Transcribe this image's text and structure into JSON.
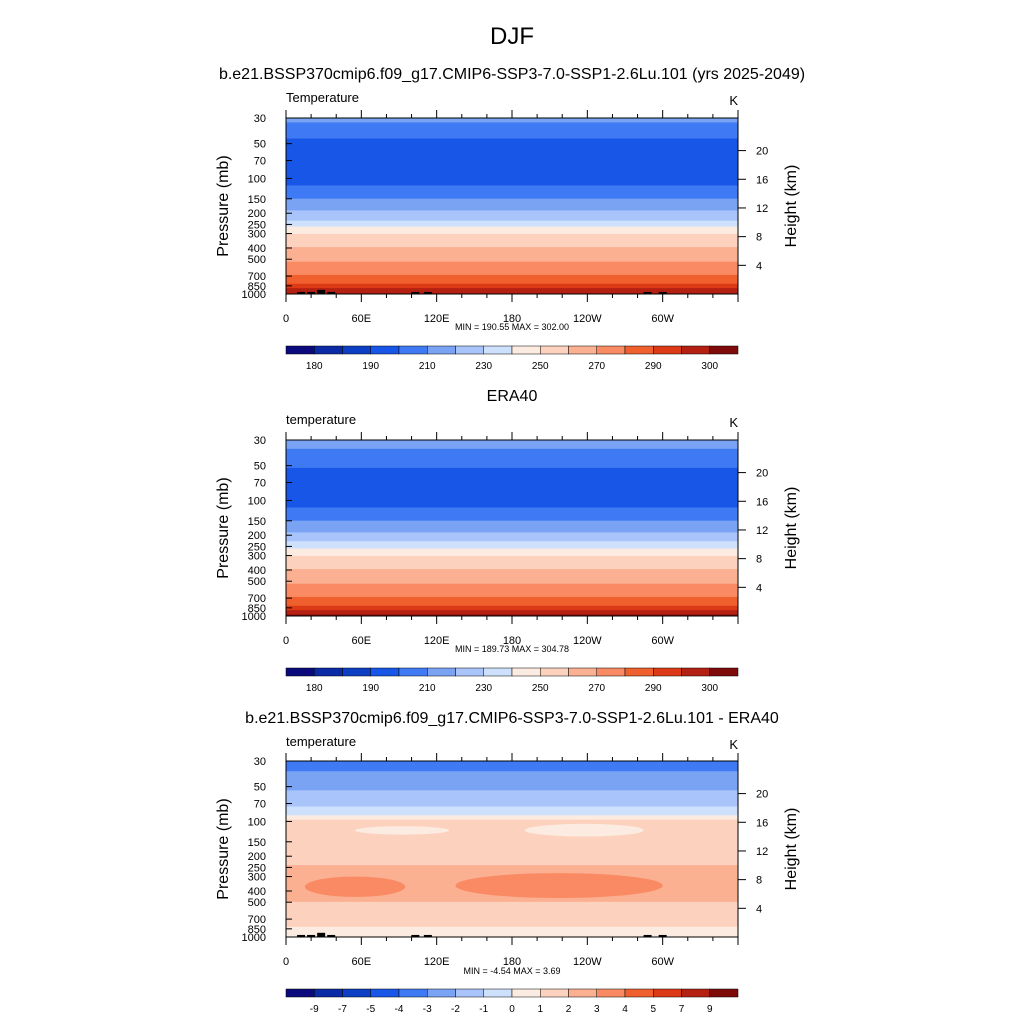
{
  "figure": {
    "title": "DJF",
    "subtitle": "b.e21.BSSP370cmip6.f09_g17.CMIP6-SSP3-7.0-SSP1-2.6Lu.101 (yrs 2025-2049)"
  },
  "colors": {
    "absolute_palette": [
      "#0a0a7c",
      "#0b2aa6",
      "#0c3fc4",
      "#1856e8",
      "#3f7af4",
      "#7aa3f4",
      "#a9c4fa",
      "#cde0fc",
      "#fcebe0",
      "#fcd2bf",
      "#fbb092",
      "#f98a63",
      "#f0602f",
      "#dc3a16",
      "#b42112",
      "#7e0a0a"
    ],
    "diff_palette": [
      "#0a0a7c",
      "#0b2aa6",
      "#0c3fc4",
      "#1856e8",
      "#3f7af4",
      "#7aa3f4",
      "#a9c4fa",
      "#cde0fc",
      "#fcebe0",
      "#fcd2bf",
      "#fbb092",
      "#f98a63",
      "#f0602f",
      "#dc3a16",
      "#b42112",
      "#7e0a0a"
    ],
    "terrain": "#000000"
  },
  "chart_data": [
    {
      "type": "heatmap",
      "id": "p1",
      "title": "",
      "left_label": "Temperature",
      "units": "K",
      "ylabel": "Pressure (mb)",
      "ylabel_right": "Height (km)",
      "x_tick_labels": [
        "0",
        "60E",
        "120E",
        "180",
        "120W",
        "60W"
      ],
      "y_tick_labels": [
        "30",
        "50",
        "70",
        "100",
        "150",
        "200",
        "250",
        "300",
        "400",
        "500",
        "700",
        "850",
        "1000"
      ],
      "y_tick_values": [
        30,
        50,
        70,
        100,
        150,
        200,
        250,
        300,
        400,
        500,
        700,
        850,
        1000
      ],
      "height_tick_labels": [
        "4",
        "8",
        "12",
        "16",
        "20"
      ],
      "height_tick_values": [
        4,
        8,
        12,
        16,
        20
      ],
      "ylim": [
        30,
        1000
      ],
      "xlim": [
        0,
        360
      ],
      "stats": "MIN = 190.55  MAX = 302.00",
      "colorbar_labels": [
        "180",
        "190",
        "210",
        "230",
        "250",
        "270",
        "290",
        "300"
      ],
      "profile": [
        {
          "p": 30,
          "value": 212
        },
        {
          "p": 35,
          "value": 208
        },
        {
          "p": 50,
          "value": 197
        },
        {
          "p": 100,
          "value": 196
        },
        {
          "p": 130,
          "value": 203
        },
        {
          "p": 160,
          "value": 213
        },
        {
          "p": 200,
          "value": 222
        },
        {
          "p": 240,
          "value": 232
        },
        {
          "p": 270,
          "value": 243
        },
        {
          "p": 310,
          "value": 252
        },
        {
          "p": 360,
          "value": 257
        },
        {
          "p": 420,
          "value": 263
        },
        {
          "p": 500,
          "value": 268
        },
        {
          "p": 620,
          "value": 276
        },
        {
          "p": 720,
          "value": 283
        },
        {
          "p": 820,
          "value": 290
        },
        {
          "p": 900,
          "value": 295
        },
        {
          "p": 1000,
          "value": 300
        }
      ],
      "terrain": [
        {
          "lon": 12,
          "top_p": 960
        },
        {
          "lon": 20,
          "top_p": 960
        },
        {
          "lon": 28,
          "top_p": 920
        },
        {
          "lon": 36,
          "top_p": 960
        },
        {
          "lon": 103,
          "top_p": 960
        },
        {
          "lon": 113,
          "top_p": 960
        },
        {
          "lon": 288,
          "top_p": 960
        },
        {
          "lon": 300,
          "top_p": 960
        }
      ]
    },
    {
      "type": "heatmap",
      "id": "p2",
      "title": "ERA40",
      "left_label": "temperature",
      "units": "K",
      "ylabel": "Pressure (mb)",
      "ylabel_right": "Height (km)",
      "x_tick_labels": [
        "0",
        "60E",
        "120E",
        "180",
        "120W",
        "60W"
      ],
      "y_tick_labels": [
        "30",
        "50",
        "70",
        "100",
        "150",
        "200",
        "250",
        "300",
        "400",
        "500",
        "700",
        "850",
        "1000"
      ],
      "y_tick_values": [
        30,
        50,
        70,
        100,
        150,
        200,
        250,
        300,
        400,
        500,
        700,
        850,
        1000
      ],
      "height_tick_labels": [
        "4",
        "8",
        "12",
        "16",
        "20"
      ],
      "height_tick_values": [
        4,
        8,
        12,
        16,
        20
      ],
      "ylim": [
        30,
        1000
      ],
      "xlim": [
        0,
        360
      ],
      "stats": "MIN = 189.73  MAX = 304.78",
      "colorbar_labels": [
        "180",
        "190",
        "210",
        "230",
        "250",
        "270",
        "290",
        "300"
      ],
      "profile": [
        {
          "p": 30,
          "value": 213
        },
        {
          "p": 40,
          "value": 208
        },
        {
          "p": 55,
          "value": 198
        },
        {
          "p": 100,
          "value": 196
        },
        {
          "p": 130,
          "value": 204
        },
        {
          "p": 160,
          "value": 213
        },
        {
          "p": 200,
          "value": 222
        },
        {
          "p": 240,
          "value": 233
        },
        {
          "p": 270,
          "value": 243
        },
        {
          "p": 310,
          "value": 252
        },
        {
          "p": 360,
          "value": 257
        },
        {
          "p": 420,
          "value": 263
        },
        {
          "p": 500,
          "value": 268
        },
        {
          "p": 620,
          "value": 276
        },
        {
          "p": 720,
          "value": 283
        },
        {
          "p": 820,
          "value": 290
        },
        {
          "p": 900,
          "value": 295
        },
        {
          "p": 1000,
          "value": 301
        }
      ],
      "terrain": []
    },
    {
      "type": "heatmap",
      "id": "p3",
      "title": "b.e21.BSSP370cmip6.f09_g17.CMIP6-SSP3-7.0-SSP1-2.6Lu.101 - ERA40",
      "left_label": "temperature",
      "units": "K",
      "ylabel": "Pressure (mb)",
      "ylabel_right": "Height (km)",
      "x_tick_labels": [
        "0",
        "60E",
        "120E",
        "180",
        "120W",
        "60W"
      ],
      "y_tick_labels": [
        "30",
        "50",
        "70",
        "100",
        "150",
        "200",
        "250",
        "300",
        "400",
        "500",
        "700",
        "850",
        "1000"
      ],
      "y_tick_values": [
        30,
        50,
        70,
        100,
        150,
        200,
        250,
        300,
        400,
        500,
        700,
        850,
        1000
      ],
      "height_tick_labels": [
        "4",
        "8",
        "12",
        "16",
        "20"
      ],
      "height_tick_values": [
        4,
        8,
        12,
        16,
        20
      ],
      "ylim": [
        30,
        1000
      ],
      "xlim": [
        0,
        360
      ],
      "stats": "MIN =  -4.54  MAX =   3.69",
      "colorbar_labels": [
        "-9",
        "-7",
        "-5",
        "-4",
        "-3",
        "-2",
        "-1",
        "0",
        "1",
        "2",
        "3",
        "4",
        "5",
        "7",
        "9"
      ],
      "profile": [
        {
          "p": 30,
          "value": -3.5
        },
        {
          "p": 45,
          "value": -2.5
        },
        {
          "p": 65,
          "value": -1.5
        },
        {
          "p": 85,
          "value": -0.5
        },
        {
          "p": 100,
          "value": 1.5
        },
        {
          "p": 200,
          "value": 1.5
        },
        {
          "p": 280,
          "value": 2.5
        },
        {
          "p": 450,
          "value": 2.5
        },
        {
          "p": 560,
          "value": 1.5
        },
        {
          "p": 760,
          "value": 1.5
        },
        {
          "p": 860,
          "value": 0.5
        },
        {
          "p": 1000,
          "value": 0.5
        }
      ],
      "patches": [
        {
          "lon0": 15,
          "lon1": 95,
          "p0": 300,
          "p1": 450,
          "value": 3.5
        },
        {
          "lon0": 135,
          "lon1": 300,
          "p0": 280,
          "p1": 460,
          "value": 3.5
        },
        {
          "lon0": 190,
          "lon1": 285,
          "p0": 105,
          "p1": 135,
          "value": 0.5
        },
        {
          "lon0": 55,
          "lon1": 130,
          "p0": 110,
          "p1": 130,
          "value": 0.5
        }
      ],
      "terrain": [
        {
          "lon": 12,
          "top_p": 960
        },
        {
          "lon": 20,
          "top_p": 960
        },
        {
          "lon": 28,
          "top_p": 920
        },
        {
          "lon": 36,
          "top_p": 960
        },
        {
          "lon": 103,
          "top_p": 960
        },
        {
          "lon": 113,
          "top_p": 960
        },
        {
          "lon": 288,
          "top_p": 960
        },
        {
          "lon": 300,
          "top_p": 960
        }
      ]
    }
  ]
}
